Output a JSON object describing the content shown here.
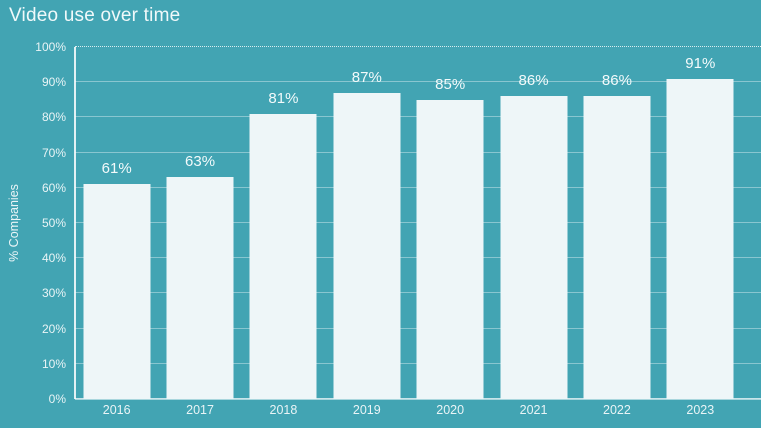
{
  "chart_data": {
    "type": "bar",
    "title": "Video use over time",
    "categories": [
      "2016",
      "2017",
      "2018",
      "2019",
      "2020",
      "2021",
      "2022",
      "2023"
    ],
    "values": [
      61,
      63,
      81,
      87,
      85,
      86,
      86,
      91
    ],
    "data_labels": [
      "61%",
      "63%",
      "81%",
      "87%",
      "85%",
      "86%",
      "86%",
      "91%"
    ],
    "xlabel": "",
    "ylabel": "% Companies",
    "ylim": [
      0,
      100
    ],
    "y_tick_step": 10,
    "y_tick_labels": [
      "0%",
      "10%",
      "20%",
      "30%",
      "40%",
      "50%",
      "60%",
      "70%",
      "80%",
      "90%",
      "100%"
    ],
    "grid": "horizontal, top line dotted",
    "legend": "none",
    "colors": {
      "background": "#42a4b3",
      "bar_fill": "#eef6f8",
      "title_text": "#f0f9fa",
      "axis_text": "#e9f4f6",
      "data_label_text": "#f3fafb"
    }
  }
}
